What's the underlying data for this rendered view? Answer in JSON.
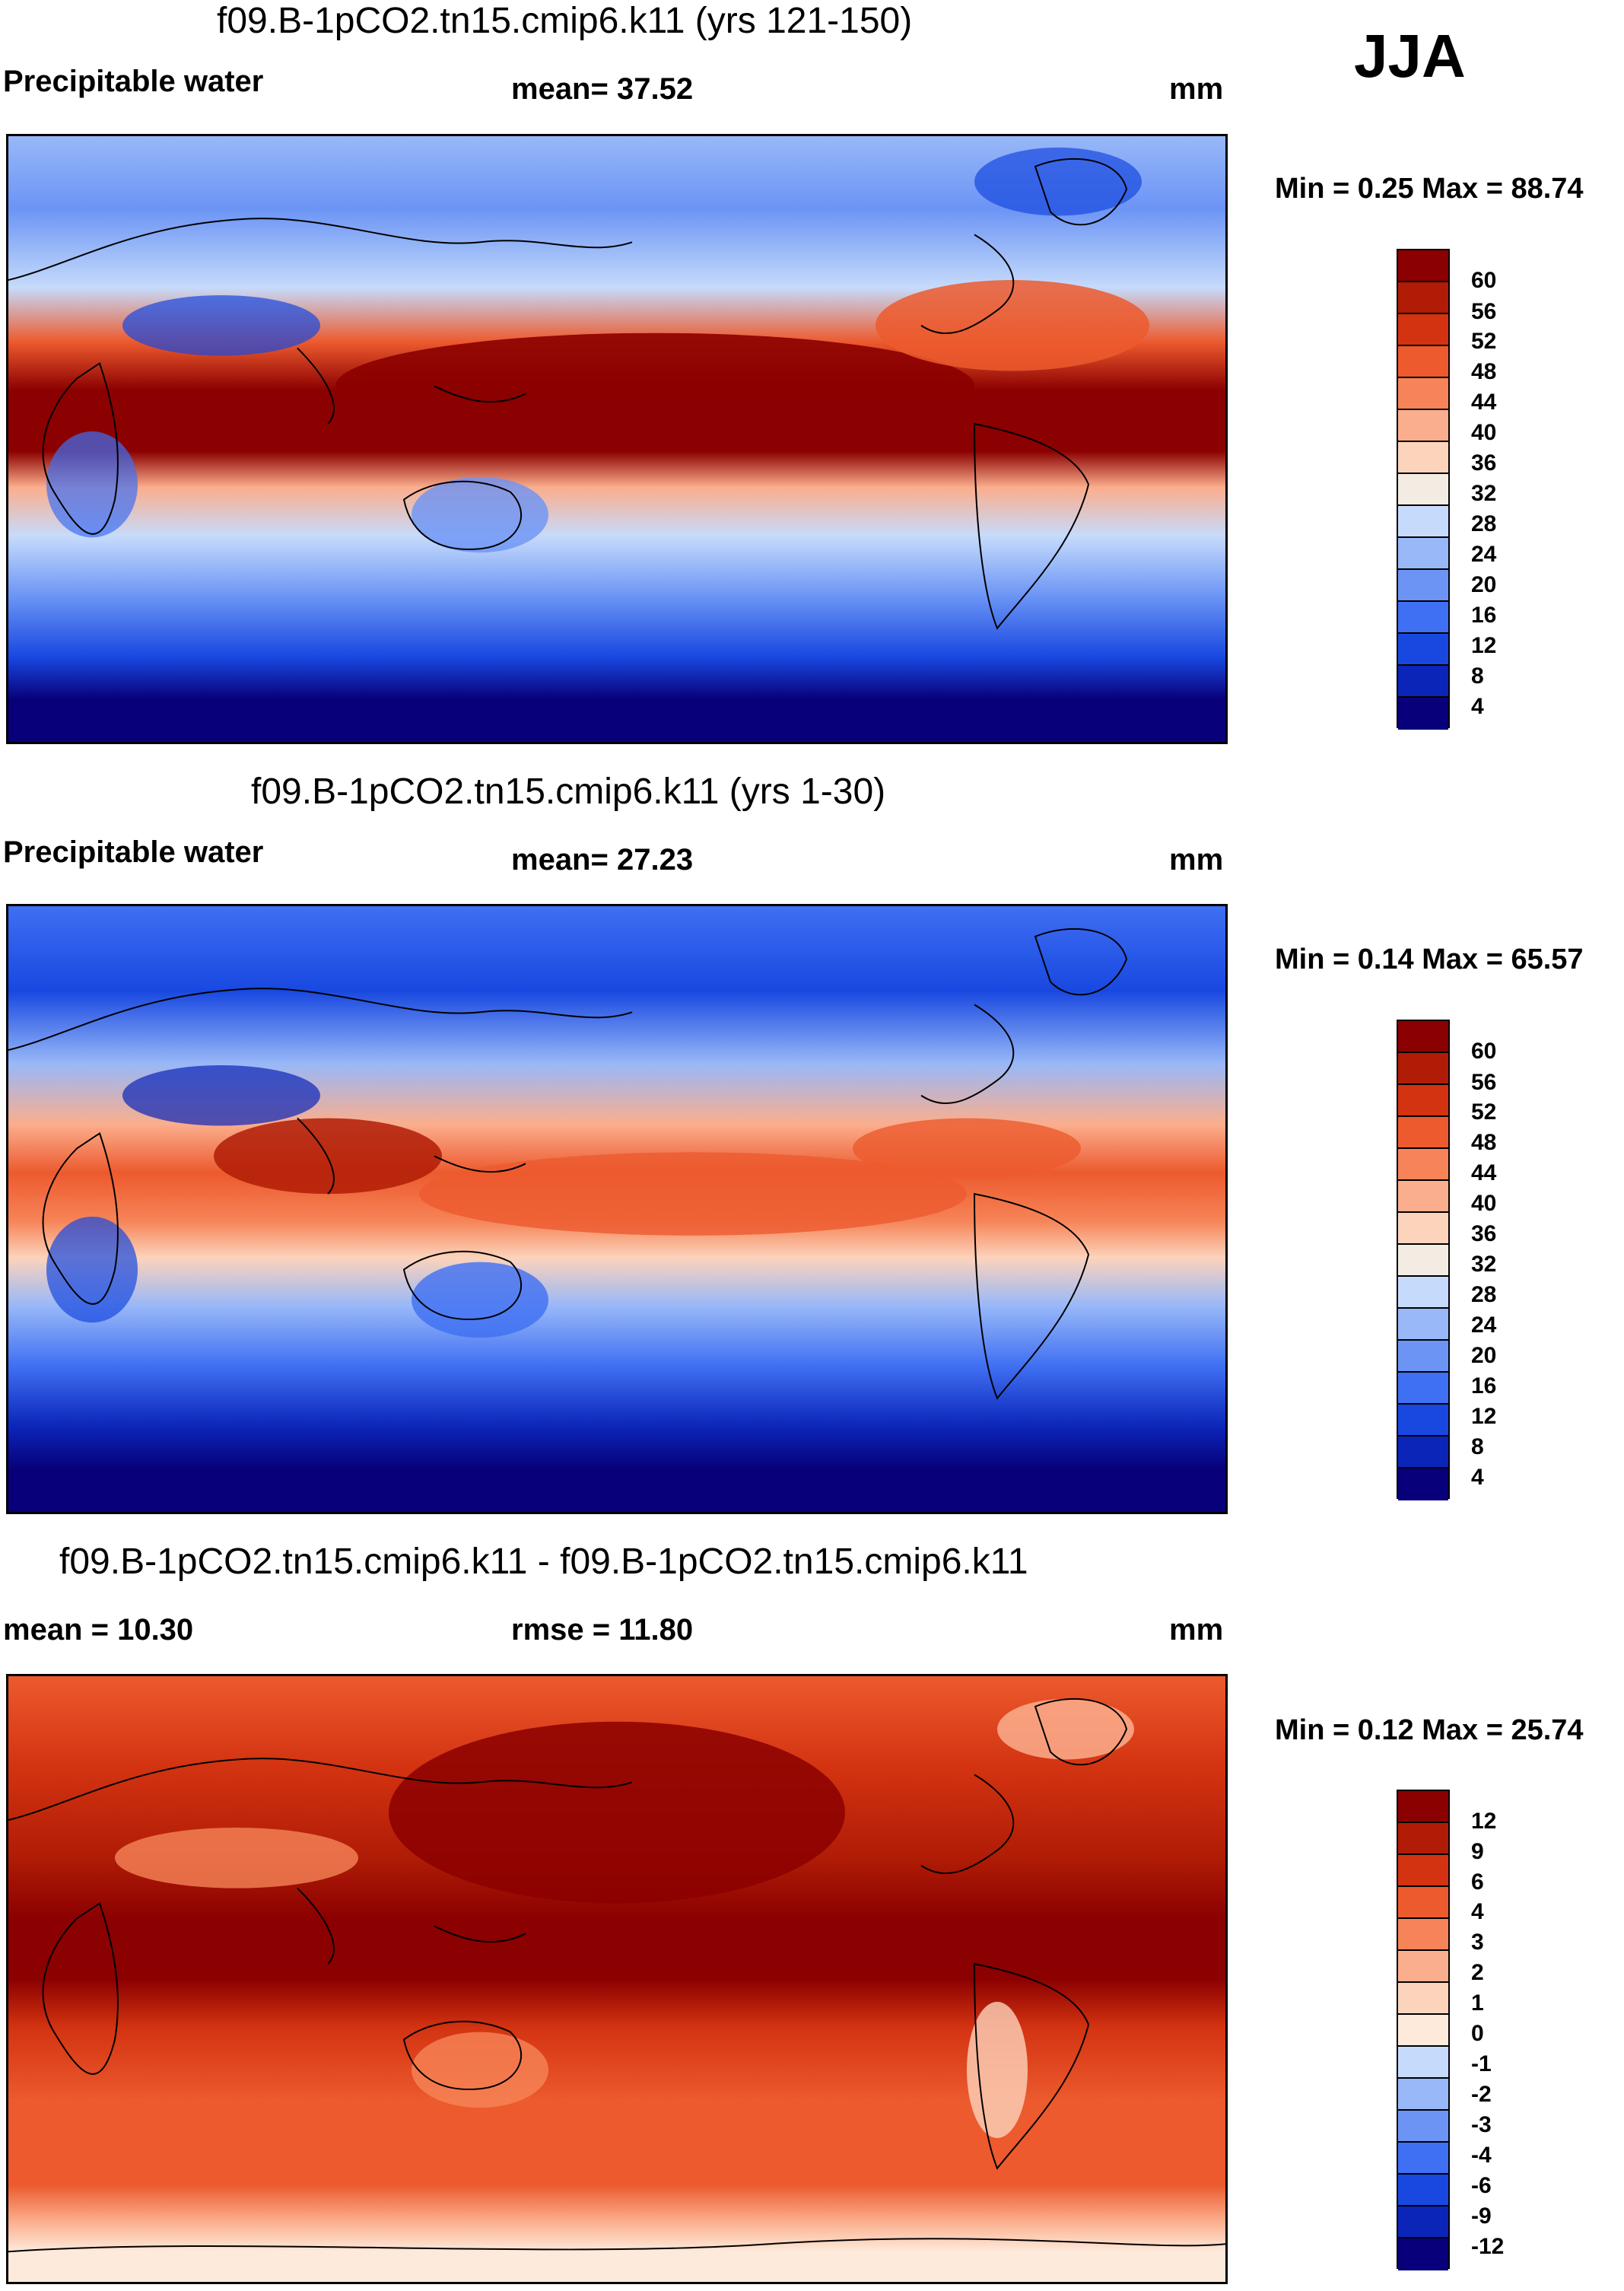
{
  "season": "JJA",
  "palette": {
    "precip": [
      "#08007a",
      "#0b25b8",
      "#1848e0",
      "#3f6ff2",
      "#6b94f5",
      "#98b8f8",
      "#c6dbfb",
      "#f3ece3",
      "#fcd3bb",
      "#fbae8d",
      "#f68458",
      "#ec5a2e",
      "#d33311",
      "#b01c06",
      "#8b0000"
    ],
    "diff": [
      "#08007a",
      "#0b25b8",
      "#1848e0",
      "#3f6ff2",
      "#6b94f5",
      "#98b8f8",
      "#c6dbfb",
      "#fdeadb",
      "#fcd3bb",
      "#fbae8d",
      "#f68458",
      "#ec5a2e",
      "#d33311",
      "#b01c06",
      "#8b0000"
    ]
  },
  "panels": [
    {
      "title": "f09.B-1pCO2.tn15.cmip6.k11 (yrs 121-150)",
      "left_label": "Precipitable water",
      "center_label": "mean=  37.52",
      "units": "mm",
      "minmax": "Min =   0.25 Max =  88.74",
      "map_name": "precipitable-water-map-yrs-121-150",
      "colorbar_labels": [
        "60",
        "56",
        "52",
        "48",
        "44",
        "40",
        "36",
        "32",
        "28",
        "24",
        "20",
        "16",
        "12",
        "8",
        "4"
      ]
    },
    {
      "title": "f09.B-1pCO2.tn15.cmip6.k11 (yrs 1-30)",
      "left_label": "Precipitable water",
      "center_label": "mean=  27.23",
      "units": "mm",
      "minmax": "Min =   0.14 Max =  65.57",
      "map_name": "precipitable-water-map-yrs-1-30",
      "colorbar_labels": [
        "60",
        "56",
        "52",
        "48",
        "44",
        "40",
        "36",
        "32",
        "28",
        "24",
        "20",
        "16",
        "12",
        "8",
        "4"
      ]
    },
    {
      "title": "f09.B-1pCO2.tn15.cmip6.k11 - f09.B-1pCO2.tn15.cmip6.k11",
      "left_label": "mean =  10.30",
      "center_label": "rmse =  11.80",
      "units": "mm",
      "minmax": "Min =   0.12 Max =  25.74",
      "map_name": "difference-map",
      "colorbar_labels": [
        "12",
        "9",
        "6",
        "4",
        "3",
        "2",
        "1",
        "0",
        "-1",
        "-2",
        "-3",
        "-4",
        "-6",
        "-9",
        "-12"
      ]
    }
  ]
}
